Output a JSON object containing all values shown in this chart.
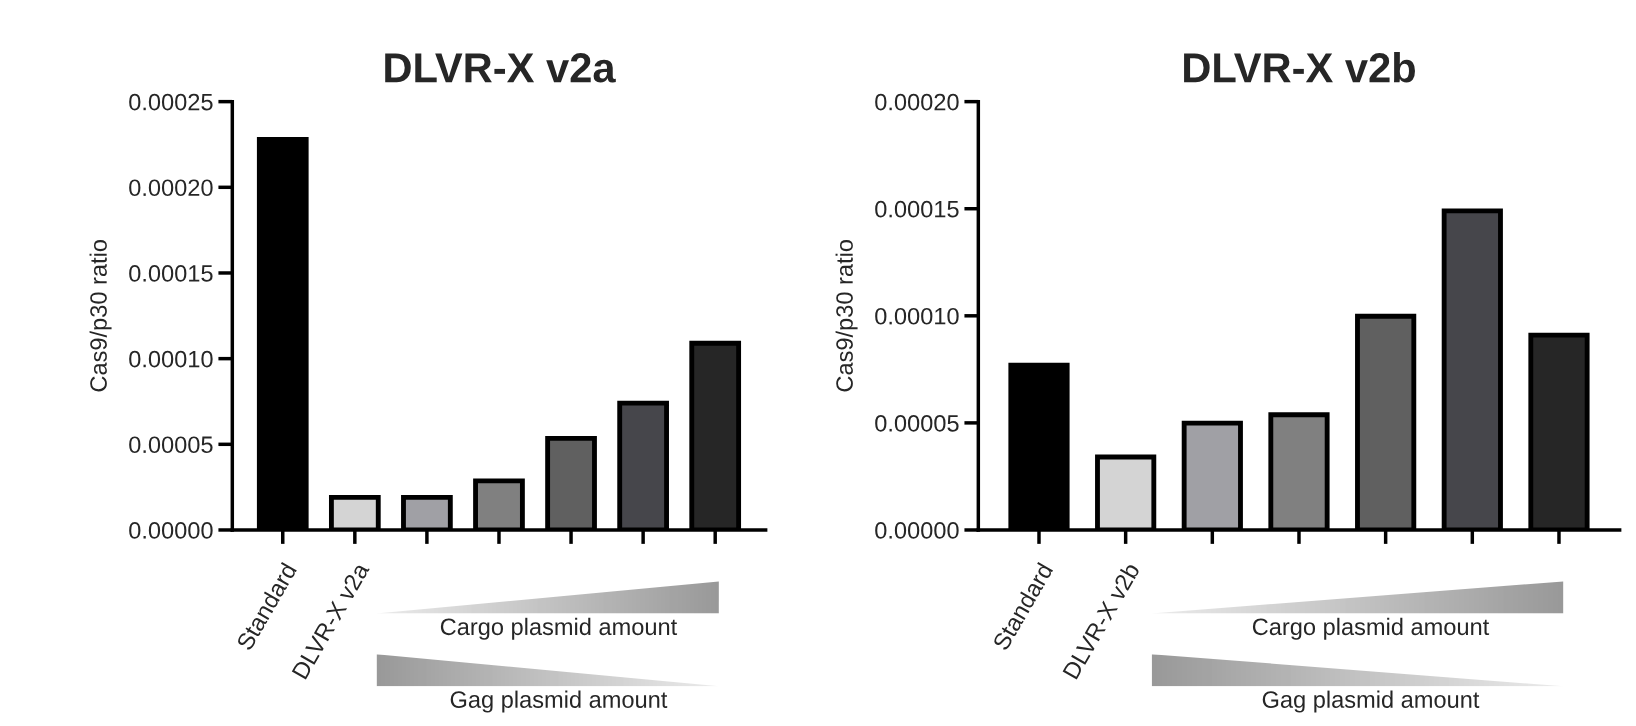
{
  "chart_data": [
    {
      "type": "bar",
      "title": "DLVR-X v2a",
      "ylabel": "Cas9/p30 ratio",
      "categories": [
        "Standard",
        "DLVR-X v2a",
        null,
        null,
        null,
        null,
        null
      ],
      "values": [
        0.000228,
        1.9e-05,
        1.9e-05,
        2.87e-05,
        5.35e-05,
        7.4e-05,
        0.000109
      ],
      "colors": [
        "#000000",
        "#d4d4d4",
        "#a0a0a5",
        "#808080",
        "#606060",
        "#46464b",
        "#262626"
      ],
      "ylim": [
        0,
        0.00025
      ],
      "yticks": [
        {
          "value": 0,
          "label": "0.00000"
        },
        {
          "value": 5e-05,
          "label": "0.00005"
        },
        {
          "value": 0.0001,
          "label": "0.00010"
        },
        {
          "value": 0.00015,
          "label": "0.00015"
        },
        {
          "value": 0.0002,
          "label": "0.00020"
        },
        {
          "value": 0.00025,
          "label": "0.00025"
        }
      ],
      "annotations": [
        "Cargo plasmid amount",
        "Gag plasmid amount"
      ]
    },
    {
      "type": "bar",
      "title": "DLVR-X v2b",
      "ylabel": "Cas9/p30 ratio",
      "categories": [
        "Standard",
        "DLVR-X v2b",
        null,
        null,
        null,
        null,
        null
      ],
      "values": [
        7.7e-05,
        3.41e-05,
        4.99e-05,
        5.38e-05,
        9.98e-05,
        0.000149,
        9.1e-05
      ],
      "colors": [
        "#000000",
        "#d4d4d4",
        "#a0a0a5",
        "#808080",
        "#606060",
        "#46464b",
        "#262626"
      ],
      "ylim": [
        0,
        0.0002
      ],
      "yticks": [
        {
          "value": 0,
          "label": "0.00000"
        },
        {
          "value": 5e-05,
          "label": "0.00005"
        },
        {
          "value": 0.0001,
          "label": "0.00010"
        },
        {
          "value": 0.00015,
          "label": "0.00015"
        },
        {
          "value": 0.0002,
          "label": "0.00020"
        }
      ],
      "annotations": [
        "Cargo plasmid amount",
        "Gag plasmid amount"
      ]
    }
  ]
}
